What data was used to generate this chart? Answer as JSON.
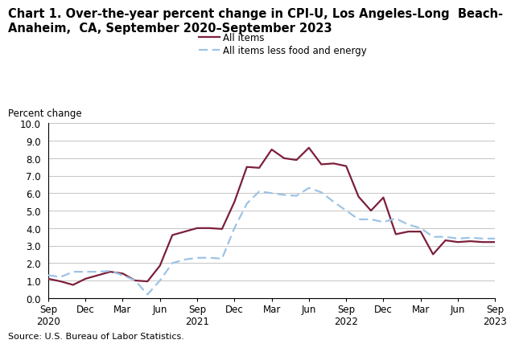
{
  "title_line1": "Chart 1. Over-the-year percent change in CPI-U, Los Angeles-Long  Beach-",
  "title_line2": "Anaheim,  CA, September 2020–September 2023",
  "ylabel": "Percent change",
  "source": "Source: U.S. Bureau of Labor Statistics.",
  "ylim": [
    0.0,
    10.0
  ],
  "yticks": [
    0.0,
    1.0,
    2.0,
    3.0,
    4.0,
    5.0,
    6.0,
    7.0,
    8.0,
    9.0,
    10.0
  ],
  "xtick_labels": [
    "Sep\n2020",
    "Dec",
    "Mar",
    "Jun",
    "Sep\n2021",
    "Dec",
    "Mar",
    "Jun",
    "Sep\n2022",
    "Dec",
    "Mar",
    "Jun",
    "Sep\n2023"
  ],
  "xtick_positions": [
    0,
    3,
    6,
    9,
    12,
    15,
    18,
    21,
    24,
    27,
    30,
    33,
    36
  ],
  "all_items": [
    1.1,
    0.95,
    0.75,
    1.1,
    1.3,
    1.5,
    1.4,
    1.0,
    0.95,
    1.85,
    3.6,
    3.8,
    4.0,
    4.0,
    3.95,
    5.5,
    7.5,
    7.45,
    8.5,
    8.0,
    7.9,
    8.6,
    7.65,
    7.7,
    7.55,
    5.8,
    5.0,
    5.75,
    3.65,
    3.8,
    3.8,
    2.5,
    3.3,
    3.2,
    3.25,
    3.2,
    3.2
  ],
  "all_items_less": [
    1.3,
    1.2,
    1.5,
    1.5,
    1.5,
    1.55,
    1.3,
    1.0,
    0.2,
    1.0,
    2.0,
    2.2,
    2.3,
    2.3,
    2.25,
    4.0,
    5.4,
    6.1,
    6.0,
    5.9,
    5.85,
    6.3,
    6.05,
    5.5,
    5.0,
    4.5,
    4.5,
    4.35,
    4.55,
    4.2,
    4.0,
    3.5,
    3.5,
    3.4,
    3.45,
    3.4,
    3.4
  ],
  "line1_color": "#7B1F3A",
  "line2_color": "#9DC3E6",
  "line1_label": "All items",
  "line2_label": "All items less food and energy",
  "background_color": "#FFFFFF",
  "grid_color": "#BBBBBB",
  "title_fontsize": 10.5,
  "axis_fontsize": 8.5,
  "source_fontsize": 8.0
}
